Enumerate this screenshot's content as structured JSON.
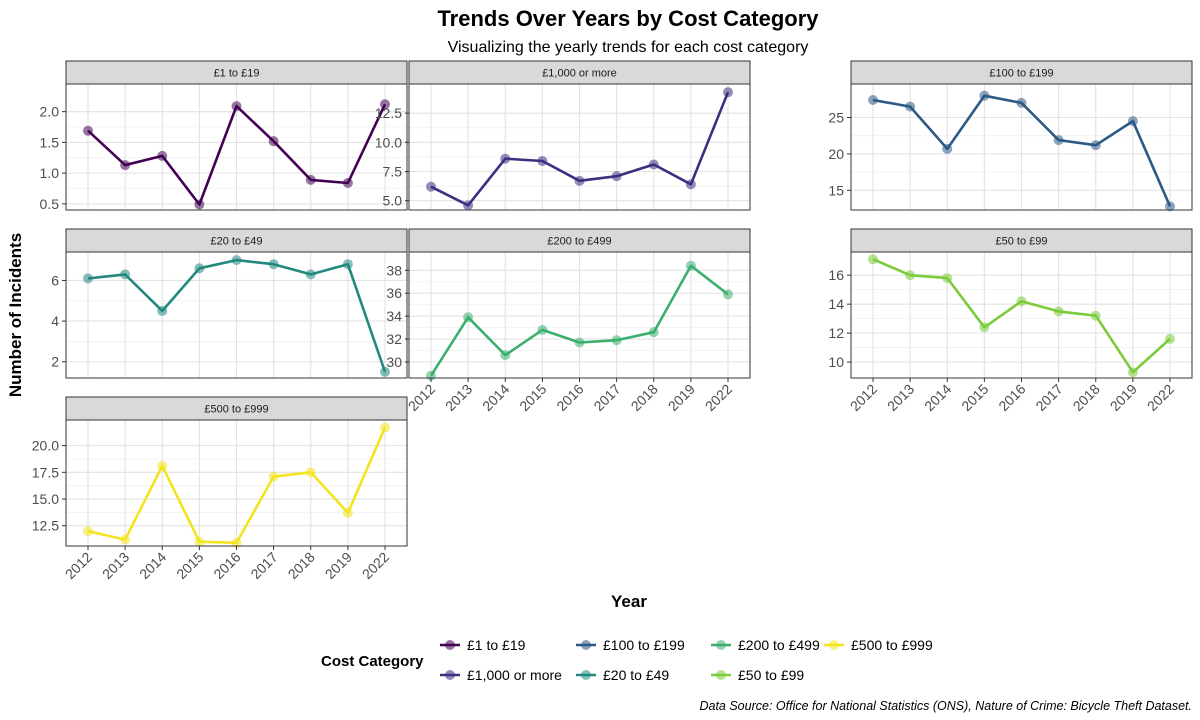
{
  "chart_data": {
    "type": "line",
    "title": "Trends Over Years by Cost Category",
    "subtitle": "Visualizing the yearly trends for each cost category",
    "xlabel": "Year",
    "ylabel": "Number of Incidents",
    "caption": "Data Source: Office for National Statistics (ONS), Nature of Crime: Bicycle Theft Dataset.",
    "legend": {
      "title": "Cost Category",
      "placement": "bottom"
    },
    "grid": true,
    "x": [
      "2012",
      "2013",
      "2014",
      "2015",
      "2016",
      "2017",
      "2018",
      "2019",
      "2022"
    ],
    "facets": [
      {
        "name": "£1 to £19",
        "color": "#440154",
        "values": [
          1.69,
          1.13,
          1.28,
          0.49,
          2.09,
          1.52,
          0.89,
          0.84,
          2.12
        ],
        "ylim": [
          0.4,
          2.45
        ],
        "ticks": [
          0.5,
          1.0,
          1.5,
          2.0
        ],
        "tick_labels": [
          "0.5",
          "1.0",
          "1.5",
          "2.0"
        ]
      },
      {
        "name": "£1,000 or more",
        "color": "#3B2F80",
        "values": [
          6.2,
          4.6,
          8.6,
          8.4,
          6.7,
          7.1,
          8.1,
          6.4,
          14.3
        ],
        "ylim": [
          4.2,
          15.0
        ],
        "ticks": [
          5.0,
          7.5,
          10.0,
          12.5
        ],
        "tick_labels": [
          "5.0",
          "7.5",
          "10.0",
          "12.5"
        ]
      },
      {
        "name": "£100 to £199",
        "color": "#2C5985",
        "values": [
          27.4,
          26.5,
          20.7,
          28.0,
          27.0,
          21.9,
          21.2,
          24.5,
          12.8
        ],
        "ylim": [
          12.3,
          29.6
        ],
        "ticks": [
          15,
          20,
          25
        ],
        "tick_labels": [
          "15",
          "20",
          "25"
        ]
      },
      {
        "name": "£20 to £49",
        "color": "#21897E",
        "values": [
          6.1,
          6.3,
          4.5,
          6.6,
          7.0,
          6.8,
          6.3,
          6.8,
          1.5
        ],
        "ylim": [
          1.2,
          7.4
        ],
        "ticks": [
          2,
          4,
          6
        ],
        "tick_labels": [
          "2",
          "4",
          "6"
        ]
      },
      {
        "name": "£200 to £499",
        "color": "#3BAF6E",
        "values": [
          28.8,
          33.9,
          30.6,
          32.8,
          31.7,
          31.9,
          32.6,
          38.4,
          35.9
        ],
        "ylim": [
          28.6,
          39.6
        ],
        "ticks": [
          30,
          32,
          34,
          36,
          38
        ],
        "tick_labels": [
          "30",
          "32",
          "34",
          "36",
          "38"
        ]
      },
      {
        "name": "£50 to £99",
        "color": "#7ACC3A",
        "values": [
          17.1,
          16.0,
          15.8,
          12.4,
          14.2,
          13.5,
          13.2,
          9.3,
          11.6
        ],
        "ylim": [
          8.9,
          17.6
        ],
        "ticks": [
          10,
          12,
          14,
          16
        ],
        "tick_labels": [
          "10",
          "12",
          "14",
          "16"
        ]
      },
      {
        "name": "£500 to £999",
        "color": "#F2E41E",
        "values": [
          12.0,
          11.2,
          18.1,
          11.0,
          10.9,
          17.1,
          17.5,
          13.7,
          21.7
        ],
        "ylim": [
          10.6,
          22.4
        ],
        "ticks": [
          12.5,
          15.0,
          17.5,
          20.0
        ],
        "tick_labels": [
          "12.5",
          "15.0",
          "17.5",
          "20.0"
        ]
      }
    ]
  }
}
